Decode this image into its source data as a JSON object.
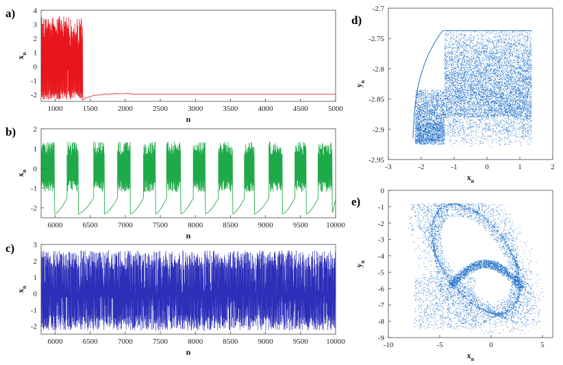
{
  "chart_data": [
    {
      "id": "a",
      "panel_label": "a)",
      "type": "line",
      "color": "#e8161c",
      "xlabel": "n",
      "ylabel": "x",
      "ylabel_sub": "n",
      "xlim": [
        800,
        5000
      ],
      "ylim": [
        -2.5,
        4
      ],
      "xticks": [
        1000,
        1500,
        2000,
        2500,
        3000,
        3500,
        4000,
        4500,
        5000
      ],
      "yticks": [
        -2,
        -1,
        0,
        1,
        2,
        3,
        4
      ],
      "segments": [
        {
          "kind": "oscillation",
          "x_start": 800,
          "x_end": 1390,
          "y_min": -2.4,
          "y_max": 3.6
        },
        {
          "kind": "decay",
          "x_start": 1390,
          "x_end": 2100,
          "y_from": -2.4,
          "y_to": -1.95
        },
        {
          "kind": "constant",
          "x_start": 2100,
          "x_end": 5000,
          "y": -1.98
        }
      ]
    },
    {
      "id": "b",
      "panel_label": "b)",
      "type": "line",
      "color": "#1faa4a",
      "xlabel": "n",
      "ylabel": "x",
      "ylabel_sub": "n",
      "xlim": [
        5800,
        10000
      ],
      "ylim": [
        -2.5,
        2
      ],
      "xticks": [
        6000,
        6500,
        7000,
        7500,
        8000,
        8500,
        9000,
        9500,
        10000
      ],
      "yticks": [
        -2,
        -1,
        0,
        1,
        2
      ],
      "bursts": [
        {
          "x_start": 5800,
          "x_end": 5990
        },
        {
          "x_start": 6170,
          "x_end": 6330
        },
        {
          "x_start": 6550,
          "x_end": 6700
        },
        {
          "x_start": 6890,
          "x_end": 7070
        },
        {
          "x_start": 7260,
          "x_end": 7430
        },
        {
          "x_start": 7590,
          "x_end": 7790
        },
        {
          "x_start": 7970,
          "x_end": 8140
        },
        {
          "x_start": 8330,
          "x_end": 8530
        },
        {
          "x_start": 8700,
          "x_end": 8840
        },
        {
          "x_start": 9050,
          "x_end": 9240
        },
        {
          "x_start": 9420,
          "x_end": 9580
        },
        {
          "x_start": 9750,
          "x_end": 9950
        }
      ],
      "burst_range": [
        -1.2,
        1.35
      ],
      "quiet_min": -2.3
    },
    {
      "id": "c",
      "panel_label": "c)",
      "type": "line",
      "color": "#2c2fb8",
      "xlabel": "n",
      "ylabel": "x",
      "ylabel_sub": "n",
      "xlim": [
        5800,
        10000
      ],
      "ylim": [
        -2.5,
        3
      ],
      "xticks": [
        6000,
        6500,
        7000,
        7500,
        8000,
        8500,
        9000,
        9500,
        10000
      ],
      "yticks": [
        -2,
        -1,
        0,
        1,
        2,
        3
      ],
      "y_range": [
        -2.3,
        2.65
      ]
    },
    {
      "id": "d",
      "panel_label": "d)",
      "type": "scatter",
      "color": "#1f6fc8",
      "xlabel": "x",
      "xlabel_sub": "n",
      "ylabel": "y",
      "ylabel_sub": "n",
      "xlim": [
        -3,
        2
      ],
      "ylim": [
        -2.95,
        -2.7
      ],
      "xticks": [
        -3,
        -2,
        -1,
        0,
        1,
        2
      ],
      "yticks": [
        -2.95,
        -2.9,
        -2.85,
        -2.8,
        -2.75,
        -2.7
      ],
      "ytick_labels": [
        "-2.95",
        "-2.9",
        "-2.85",
        "-2.8",
        "-2.75",
        "-2.7"
      ]
    },
    {
      "id": "e",
      "panel_label": "e)",
      "type": "scatter",
      "color": "#1f6fc8",
      "xlabel": "x",
      "xlabel_sub": "n",
      "ylabel": "y",
      "ylabel_sub": "n",
      "xlim": [
        -10,
        6
      ],
      "ylim": [
        -9,
        0
      ],
      "xticks": [
        -10,
        -5,
        0,
        5
      ],
      "yticks": [
        -9,
        -8,
        -7,
        -6,
        -5,
        -4,
        -3,
        -2,
        -1,
        0
      ]
    }
  ]
}
